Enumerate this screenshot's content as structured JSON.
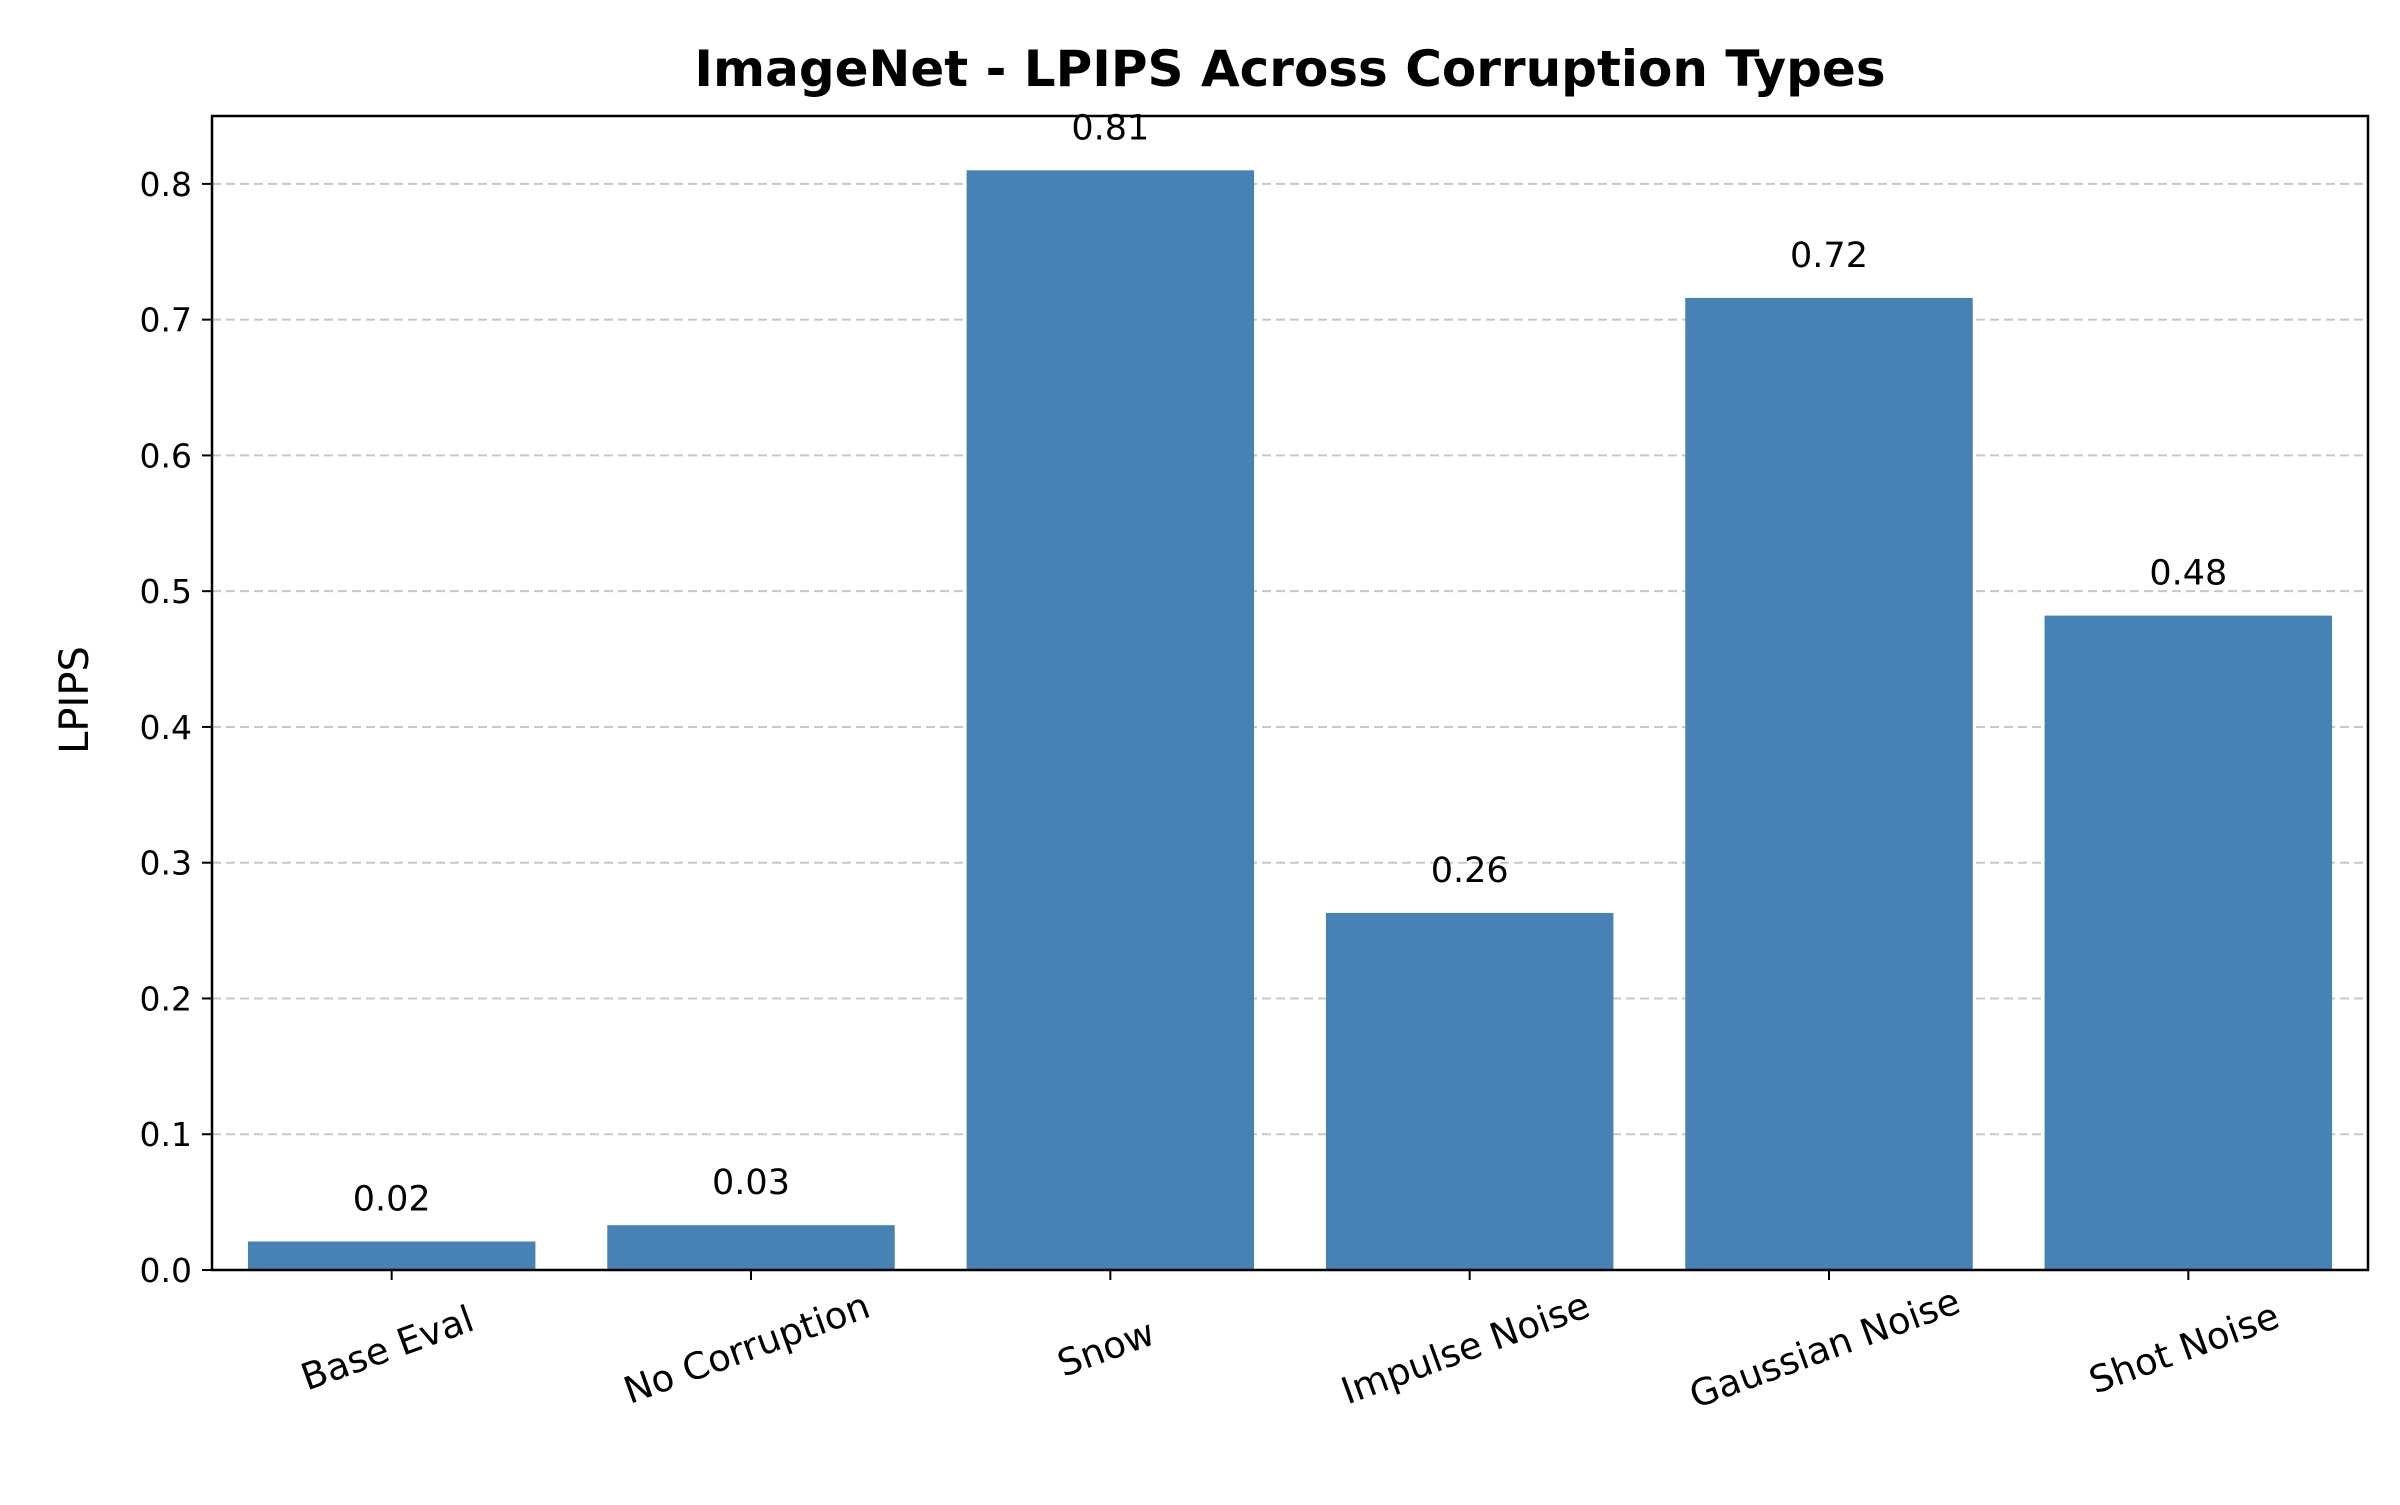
{
  "chart_data": {
    "type": "bar",
    "title": "ImageNet - LPIPS Across Corruption Types",
    "xlabel": "",
    "ylabel": "LPIPS",
    "categories": [
      "Base Eval",
      "No Corruption",
      "Snow",
      "Impulse Noise",
      "Gaussian Noise",
      "Shot Noise"
    ],
    "values": [
      0.021,
      0.033,
      0.81,
      0.263,
      0.716,
      0.482
    ],
    "data_labels": [
      "0.02",
      "0.03",
      "0.81",
      "0.26",
      "0.72",
      "0.48"
    ],
    "ylim": [
      0,
      0.85
    ],
    "yticks": [
      0.0,
      0.1,
      0.2,
      0.3,
      0.4,
      0.5,
      0.6,
      0.7,
      0.8
    ],
    "ytick_labels": [
      "0.0",
      "0.1",
      "0.2",
      "0.3",
      "0.4",
      "0.5",
      "0.6",
      "0.7",
      "0.8"
    ],
    "grid": "y-dashed",
    "bar_color": "#4682b4",
    "grid_color": "#c8c8c8"
  }
}
